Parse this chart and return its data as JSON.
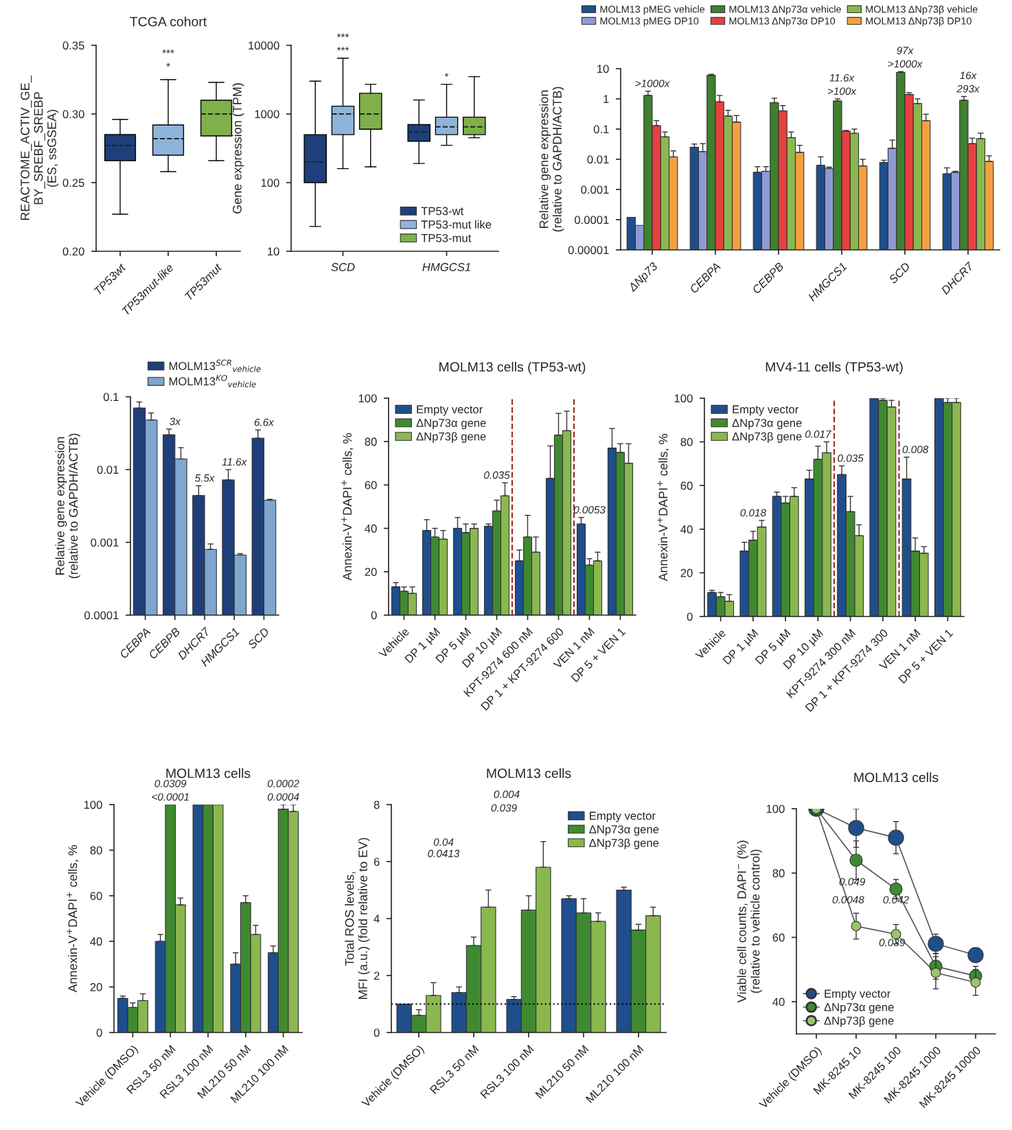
{
  "chart_data": [
    {
      "type": "box",
      "title": "TCGA cohort",
      "ylabel": "REACTOME_ACTIV_GE_\nBY_SREBF_SREBP\n(ES, ssGSEA)",
      "categories": [
        "TP53wt",
        "TP53mut-like",
        "TP53mut"
      ],
      "colors": [
        "#1f3f7a",
        "#8fb4d9",
        "#7fb04a"
      ],
      "boxes": [
        {
          "low": 0.227,
          "q1": 0.266,
          "median": 0.277,
          "q3": 0.285,
          "high": 0.296
        },
        {
          "low": 0.258,
          "q1": 0.27,
          "median": 0.282,
          "q3": 0.292,
          "high": 0.325
        },
        {
          "low": 0.266,
          "q1": 0.284,
          "median": 0.3,
          "q3": 0.31,
          "high": 0.323
        }
      ],
      "ylim": [
        0.2,
        0.35
      ],
      "yticks": [
        {
          "value": 0.2,
          "label": "0.20"
        },
        {
          "value": 0.25,
          "label": "0.25"
        },
        {
          "value": 0.3,
          "label": "0.30"
        },
        {
          "value": 0.35,
          "label": "0.35"
        }
      ],
      "annotations": [
        {
          "text": "*",
          "x": "TP53mut-like",
          "y": 0.329
        },
        {
          "text": "***",
          "x": "TP53mut-like",
          "y": 0.329
        }
      ]
    },
    {
      "type": "box",
      "ylabel": "Gene expression (TPM)",
      "categories": [
        "SCD",
        "HMGCS1"
      ],
      "log": true,
      "ylim": [
        10,
        10000
      ],
      "yticks": [
        10,
        100,
        1000,
        10000
      ],
      "legend": "bottom right",
      "series": [
        {
          "name": "TP53-wt",
          "color": "#1f3f7a",
          "boxes": [
            {
              "low": 23,
              "q1": 100,
              "median": 200,
              "q3": 500,
              "high": 3000
            },
            {
              "low": 190,
              "q1": 400,
              "median": 550,
              "q3": 700,
              "high": 1600
            }
          ]
        },
        {
          "name": "TP53-mut like",
          "color": "#8fb4d9",
          "boxes": [
            {
              "low": 160,
              "q1": 500,
              "median": 1000,
              "q3": 1300,
              "high": 6500
            },
            {
              "low": 350,
              "q1": 500,
              "median": 650,
              "q3": 900,
              "high": 2700
            }
          ]
        },
        {
          "name": "TP53-mut",
          "color": "#7fb04a",
          "boxes": [
            {
              "low": 170,
              "q1": 600,
              "median": 1000,
              "q3": 2000,
              "high": 2700
            },
            {
              "low": 450,
              "q1": 500,
              "median": 650,
              "q3": 900,
              "high": 3500
            }
          ]
        }
      ],
      "annotations": [
        {
          "text": "***",
          "x": "SCD",
          "y": 6500
        },
        {
          "text": "***",
          "x": "SCD",
          "y": 6500
        },
        {
          "text": "*",
          "x": "HMGCS1",
          "y": 2700
        }
      ]
    },
    {
      "type": "bar",
      "ylabel": "Relative gene expression\n(relative to GAPDH/ACTB)",
      "categories": [
        "ΔNp73",
        "CEBPA",
        "CEBPB",
        "HMGCS1",
        "SCD",
        "DHCR7"
      ],
      "log": true,
      "ylim": [
        1e-05,
        10
      ],
      "yticks": [
        {
          "value": 1e-05,
          "label": "0.00001"
        },
        {
          "value": 0.0001,
          "label": "0.0001"
        },
        {
          "value": 0.001,
          "label": "0.001"
        },
        {
          "value": 0.01,
          "label": "0.01"
        },
        {
          "value": 0.1,
          "label": "0.1"
        },
        1,
        10
      ],
      "legend": "top",
      "series": [
        {
          "name": "MOLM13 pMEG vehicle",
          "color": "#1f4e8c",
          "values": [
            0.00012,
            0.025,
            0.0037,
            0.0063,
            0.0078,
            0.0033
          ],
          "errors": [
            null,
            [
              0.025,
              0.032
            ],
            [
              0.0037,
              0.0057
            ],
            [
              0.0063,
              0.012
            ],
            [
              0.0078,
              0.0093
            ],
            [
              0.0033,
              0.0052
            ]
          ]
        },
        {
          "name": "MOLM13 pMEG DP10",
          "color": "#8f9ad4",
          "values": [
            6.5e-05,
            0.018,
            0.004,
            0.005,
            0.023,
            0.0037
          ],
          "errors": [
            null,
            [
              0.018,
              0.033
            ],
            [
              0.004,
              0.0057
            ],
            [
              0.005,
              0.0055
            ],
            [
              0.023,
              0.043
            ],
            [
              0.0037,
              0.004
            ]
          ]
        },
        {
          "name": "MOLM13 ΔNp73α vehicle",
          "color": "#3f7f2f",
          "values": [
            1.3,
            6,
            0.75,
            0.85,
            7.5,
            0.9
          ],
          "errors": [
            [
              1.3,
              1.8
            ],
            [
              6,
              6.5
            ],
            [
              0.75,
              1.05
            ],
            [
              0.85,
              1.0
            ],
            [
              7.5,
              8
            ],
            [
              0.9,
              1.2
            ]
          ]
        },
        {
          "name": "MOLM13 ΔNp73α DP10",
          "color": "#e84040",
          "values": [
            0.13,
            0.8,
            0.4,
            0.085,
            1.4,
            0.033
          ],
          "errors": [
            [
              0.13,
              0.19
            ],
            [
              0.8,
              1.3
            ],
            [
              0.4,
              0.6
            ],
            [
              0.085,
              0.09
            ],
            [
              1.4,
              1.6
            ],
            [
              0.033,
              0.05
            ]
          ]
        },
        {
          "name": "MOLM13 ΔNp73β vehicle",
          "color": "#8ab84f",
          "values": [
            0.055,
            0.27,
            0.052,
            0.072,
            0.7,
            0.048
          ],
          "errors": [
            [
              0.055,
              0.08
            ],
            [
              0.27,
              0.42
            ],
            [
              0.052,
              0.08
            ],
            [
              0.072,
              0.1
            ],
            [
              0.7,
              1.0
            ],
            [
              0.048,
              0.073
            ]
          ]
        },
        {
          "name": "MOLM13 ΔNp73β DP10",
          "color": "#f5a040",
          "values": [
            0.012,
            0.17,
            0.017,
            0.006,
            0.19,
            0.0085
          ],
          "errors": [
            [
              0.012,
              0.019
            ],
            [
              0.17,
              0.28
            ],
            [
              0.017,
              0.029
            ],
            [
              0.006,
              0.01
            ],
            [
              0.19,
              0.31
            ],
            [
              0.0085,
              0.013
            ]
          ]
        }
      ],
      "annotations": [
        {
          "text": ">1000x",
          "x": "ΔNp73",
          "y": 1.8
        },
        {
          "text": ">100x",
          "x": "HMGCS1",
          "y": 1.0
        },
        {
          "text": "11.6x",
          "x": "HMGCS1",
          "y": 1.0
        },
        {
          "text": ">1000x",
          "x": "SCD",
          "y": 8
        },
        {
          "text": "97x",
          "x": "SCD",
          "y": 8
        },
        {
          "text": "293x",
          "x": "DHCR7",
          "y": 1.2
        },
        {
          "text": "16x",
          "x": "DHCR7",
          "y": 1.2
        }
      ]
    },
    {
      "type": "bar",
      "ylabel": "Relative gene expression\n(relative to GAPDH/ACTB)",
      "categories": [
        "CEBPA",
        "CEBPB",
        "DHCR7",
        "HMGCS1",
        "SCD"
      ],
      "log": true,
      "ylim": [
        0.0001,
        0.1
      ],
      "yticks": [
        {
          "value": 0.0001,
          "label": "0.0001"
        },
        {
          "value": 0.001,
          "label": "0.001"
        },
        {
          "value": 0.01,
          "label": "0.01"
        },
        {
          "value": 0.1,
          "label": "0.1"
        }
      ],
      "legend": "top",
      "series": [
        {
          "name": "MOLM13$^{SCR}$$_{vehicle}$",
          "color": "#1f3f7a",
          "values": [
            0.07,
            0.03,
            0.0044,
            0.0072,
            0.027
          ],
          "errors": [
            [
              0.07,
              0.085
            ],
            [
              0.03,
              0.036
            ],
            [
              0.0044,
              0.006
            ],
            [
              0.0072,
              0.01
            ],
            [
              0.027,
              0.035
            ]
          ]
        },
        {
          "name": "MOLM13$^{KO}$$_{vehicle}$",
          "color": "#7ea6cf",
          "values": [
            0.048,
            0.014,
            0.0008,
            0.00067,
            0.0038
          ],
          "errors": [
            [
              0.048,
              0.06
            ],
            [
              0.014,
              0.02
            ],
            [
              0.0008,
              0.00095
            ],
            [
              0.00067,
              0.0007
            ],
            [
              0.0038,
              0.0039
            ]
          ]
        }
      ],
      "annotations": [
        {
          "text": "3x",
          "x": "CEBPB",
          "y": 0.036
        },
        {
          "text": "5.5x",
          "x": "DHCR7",
          "y": 0.006
        },
        {
          "text": "11.6x",
          "x": "HMGCS1",
          "y": 0.01
        },
        {
          "text": "6.6x",
          "x": "SCD",
          "y": 0.035
        }
      ]
    },
    {
      "type": "bar",
      "title": "MOLM13 cells (TP53-wt)",
      "ylabel": "Annexin-V$^{+}$DAPI$^{+}$ cells, %",
      "categories": [
        "Vehicle",
        "DP 1 µM",
        "DP 5 µM",
        "DP 10 µM",
        "KPT-9274 600 nM",
        "DP 1 + KPT-9274 600",
        "VEN 1 nM",
        "DP 5 + VEN 1"
      ],
      "ylim": [
        0,
        100
      ],
      "yticks": [
        0,
        20,
        40,
        60,
        80,
        100
      ],
      "legend": "top left",
      "series": [
        {
          "name": "Empty vector",
          "color": "#1f4e8c",
          "values": [
            13,
            39,
            40,
            41,
            25,
            63,
            42,
            77
          ],
          "errors": [
            [
              13,
              15
            ],
            [
              39,
              44
            ],
            [
              40,
              45
            ],
            [
              41,
              42
            ],
            [
              25,
              30
            ],
            [
              63,
              78
            ],
            [
              42,
              45
            ],
            [
              77,
              86
            ]
          ]
        },
        {
          "name": "ΔNp73α gene",
          "color": "#3f8a30",
          "values": [
            11,
            36,
            38,
            48,
            36,
            83,
            23,
            75
          ],
          "errors": [
            [
              11,
              13
            ],
            [
              36,
              40
            ],
            [
              38,
              42
            ],
            [
              48,
              53
            ],
            [
              36,
              46
            ],
            [
              83,
              93
            ],
            [
              23,
              26
            ],
            [
              75,
              79
            ]
          ]
        },
        {
          "name": "ΔNp73β gene",
          "color": "#8ab84f",
          "values": [
            10,
            35,
            40,
            55,
            29,
            85,
            25,
            70
          ],
          "errors": [
            [
              10,
              13
            ],
            [
              35,
              39
            ],
            [
              40,
              42
            ],
            [
              55,
              61
            ],
            [
              29,
              36
            ],
            [
              85,
              94
            ],
            [
              25,
              29
            ],
            [
              70,
              79
            ]
          ]
        }
      ],
      "annotations": [
        {
          "text": "0.035",
          "x": "DP 10 µM",
          "y": 61
        },
        {
          "text": "0.0053",
          "x": "VEN 1 nM",
          "y": 45
        }
      ]
    },
    {
      "type": "bar",
      "title": "MV4-11 cells (TP53-wt)",
      "ylabel": "Annexin-V$^{+}$DAPI$^{+}$ cells, %",
      "categories": [
        "Vehicle",
        "DP 1 µM",
        "DP 5 µM",
        "DP 10 µM",
        "KPT-9274 300 nM",
        "DP 1 + KPT-9274 300",
        "VEN 1 nM",
        "DP 5 + VEN 1"
      ],
      "ylim": [
        0,
        100
      ],
      "yticks": [
        0,
        20,
        40,
        60,
        80,
        100
      ],
      "legend": "top left",
      "series": [
        {
          "name": "Empty vector",
          "color": "#1f4e8c",
          "values": [
            11,
            30,
            55,
            63,
            65,
            100,
            63,
            100
          ],
          "errors": [
            [
              11,
              12
            ],
            [
              30,
              34
            ],
            [
              55,
              57
            ],
            [
              63,
              67
            ],
            [
              65,
              69
            ],
            null,
            [
              63,
              73
            ],
            null
          ]
        },
        {
          "name": "ΔNp73α gene",
          "color": "#3f8a30",
          "values": [
            9,
            35,
            52,
            72,
            48,
            99,
            30,
            98
          ],
          "errors": [
            [
              9,
              11
            ],
            [
              35,
              39
            ],
            [
              52,
              55
            ],
            [
              72,
              78
            ],
            [
              48,
              55
            ],
            [
              99,
              100
            ],
            [
              30,
              36
            ],
            [
              98,
              100
            ]
          ]
        },
        {
          "name": "ΔNp73β gene",
          "color": "#8ab84f",
          "values": [
            7,
            41,
            55,
            75,
            37,
            96,
            29,
            98
          ],
          "errors": [
            [
              7,
              10
            ],
            [
              41,
              44
            ],
            [
              55,
              59
            ],
            [
              75,
              80
            ],
            [
              37,
              42
            ],
            [
              96,
              99
            ],
            [
              29,
              32
            ],
            [
              98,
              100
            ]
          ]
        }
      ],
      "annotations": [
        {
          "text": "0.018",
          "x": "DP 1 µM",
          "y": 44
        },
        {
          "text": "0.017",
          "x": "DP 10 µM",
          "y": 80
        },
        {
          "text": "0.035",
          "x": "KPT-9274 300 nM",
          "y": 69
        },
        {
          "text": "0.008",
          "x": "VEN 1 nM",
          "y": 73
        }
      ]
    },
    {
      "type": "bar",
      "title": "MOLM13 cells",
      "ylabel": "Annexin-V$^{+}$DAPI$^{+}$ cells, %",
      "categories": [
        "Vehicle (DMSO)",
        "RSL3 50 nM",
        "RSL3 100 nM",
        "ML210 50 nM",
        "ML210 100 nM"
      ],
      "ylim": [
        0,
        100
      ],
      "yticks": [
        0,
        20,
        40,
        60,
        80,
        100
      ],
      "series": [
        {
          "color": "#1f4e8c",
          "values": [
            15,
            40,
            100,
            30,
            35
          ],
          "errors": [
            [
              15,
              16
            ],
            [
              40,
              43
            ],
            null,
            [
              30,
              35
            ],
            [
              35,
              38
            ]
          ]
        },
        {
          "color": "#3f8a30",
          "values": [
            11,
            100,
            100,
            57,
            98
          ],
          "errors": [
            [
              11,
              13
            ],
            null,
            null,
            [
              57,
              60
            ],
            [
              98,
              100
            ]
          ]
        },
        {
          "color": "#8ab84f",
          "values": [
            14,
            56,
            100,
            43,
            97
          ],
          "errors": [
            [
              14,
              17
            ],
            [
              56,
              59
            ],
            null,
            [
              43,
              47
            ],
            [
              97,
              100
            ]
          ]
        }
      ],
      "annotations": [
        {
          "text": "<0.0001",
          "x": "RSL3 50 nM",
          "y": 100
        },
        {
          "text": "0.0309",
          "x": "RSL3 50 nM",
          "y": 100
        },
        {
          "text": "0.0004",
          "x": "ML210 100 nM",
          "y": 100
        },
        {
          "text": "0.0002",
          "x": "ML210 100 nM",
          "y": 100
        }
      ]
    },
    {
      "type": "bar",
      "title": "MOLM13 cells",
      "ylabel": "Total ROS levels,\nMFI (a.u.) (fold relative to EV)",
      "categories": [
        "Vehicle (DMSO)",
        "RSL3 50 nM",
        "RSL3 100 nM",
        "ML210 50 nM",
        "ML210 100 nM"
      ],
      "ylim": [
        0,
        8
      ],
      "yticks": [
        0,
        2,
        4,
        6,
        8
      ],
      "legend": "top right",
      "series": [
        {
          "name": "Empty vector",
          "color": "#1f4e8c",
          "values": [
            1.0,
            1.4,
            1.16,
            4.7,
            5.0
          ],
          "errors": [
            null,
            [
              1.4,
              1.6
            ],
            [
              1.16,
              1.26
            ],
            [
              4.7,
              4.8
            ],
            [
              5.0,
              5.1
            ]
          ]
        },
        {
          "name": "ΔNp73α gene",
          "color": "#3f8a30",
          "values": [
            0.6,
            3.05,
            4.3,
            4.2,
            3.6
          ],
          "errors": [
            [
              0.6,
              0.8
            ],
            [
              3.05,
              3.35
            ],
            [
              4.3,
              4.8
            ],
            [
              4.2,
              4.7
            ],
            [
              3.6,
              3.8
            ]
          ]
        },
        {
          "name": "ΔNp73β gene",
          "color": "#8ab84f",
          "values": [
            1.3,
            4.4,
            5.8,
            3.9,
            4.1
          ],
          "errors": [
            [
              1.3,
              1.75
            ],
            [
              4.4,
              5.0
            ],
            [
              5.8,
              6.7
            ],
            [
              3.9,
              4.2
            ],
            [
              4.1,
              4.4
            ]
          ]
        }
      ],
      "ref_lines": [
        {
          "axis": "y",
          "value": 1,
          "color": "#000000",
          "line_style": "dotted"
        }
      ],
      "annotations": [
        "0.0413",
        "0.04",
        "0.039",
        "0.004"
      ]
    },
    {
      "type": "line",
      "title": "MOLM13 cells",
      "ylabel": "Viable cell counts, DAPI$^{−}$ (%)\n(relative to vehicle control)",
      "categories": [
        "Vehicle (DMSO)",
        "MK-8245 10",
        "MK-8245 100",
        "MK-8245 1000",
        "MK-8245 10000"
      ],
      "ylim": [
        30,
        100
      ],
      "yticks": [
        40,
        60,
        80,
        100
      ],
      "legend": "bottom left",
      "marker": "circle",
      "series": [
        {
          "name": "Empty vector",
          "color": "#1f4e8c",
          "values": [
            100,
            94,
            91,
            58,
            54.5
          ],
          "errors": [
            null,
            6,
            5,
            3,
            2
          ]
        },
        {
          "name": "ΔNp73α gene",
          "color": "#3f8a30",
          "values": [
            100,
            84,
            75,
            51,
            48
          ],
          "errors": [
            null,
            6,
            3,
            4,
            3
          ]
        },
        {
          "name": "ΔNp73β gene",
          "color": "#9cc46a",
          "values": [
            100,
            63.5,
            61,
            49,
            46
          ],
          "errors": [
            null,
            4,
            3,
            5,
            4
          ]
        }
      ],
      "annotations": [
        "0.0048",
        "0.049",
        "0.039",
        "0.042"
      ]
    }
  ]
}
